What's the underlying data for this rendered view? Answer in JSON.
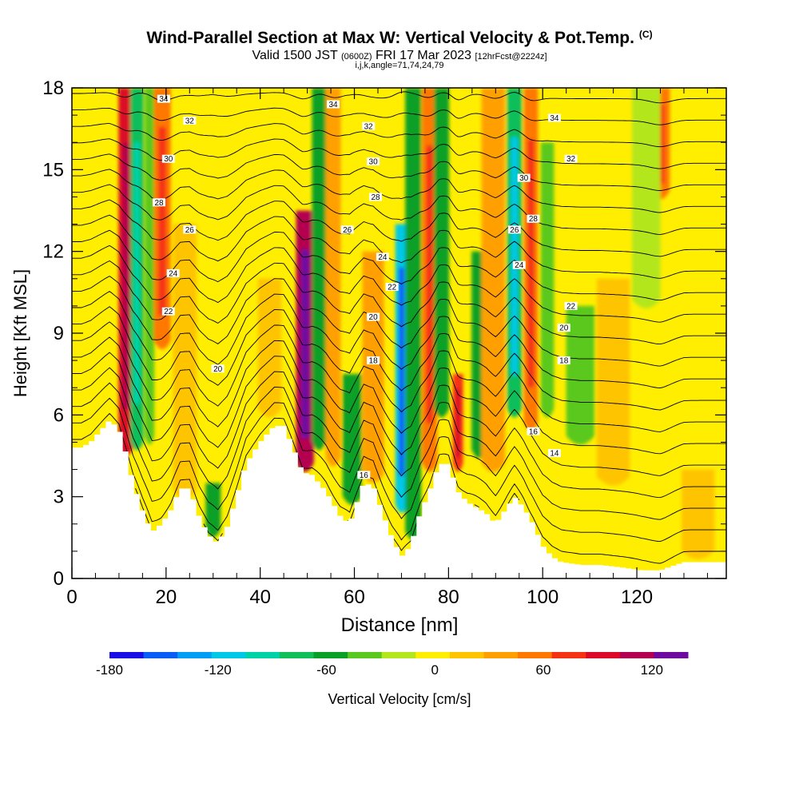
{
  "title": {
    "main": "Wind-Parallel Section at Max W: Vertical Velocity & Pot.Temp.",
    "copyright": "(C)",
    "valid": "Valid 1500 JST",
    "utc": "(0600Z)",
    "date": "FRI 17 Mar 2023",
    "fcst": "[12hrFcst@2224z]",
    "indices": "i,j,k,angle=71,74,24,79"
  },
  "chart_data": {
    "type": "heatmap",
    "xlabel": "Distance [nm]",
    "ylabel": "Height [Kft MSL]",
    "xlim": [
      0,
      139
    ],
    "ylim": [
      0,
      18
    ],
    "x_ticks": [
      0,
      20,
      40,
      60,
      80,
      100,
      120
    ],
    "y_ticks": [
      0,
      3,
      6,
      9,
      12,
      15,
      18
    ],
    "colorbar": {
      "label": "Vertical Velocity [cm/s]",
      "min": -180,
      "max": 140,
      "step": 20,
      "tick_values": [
        -180,
        -120,
        -60,
        0,
        60,
        120
      ],
      "colors": [
        "#1a0ee6",
        "#0a5ef5",
        "#009ef5",
        "#00c8e6",
        "#00d2a8",
        "#10be5a",
        "#0aa028",
        "#5ac81e",
        "#b4e61e",
        "#ffee00",
        "#ffc400",
        "#ffa000",
        "#ff7800",
        "#f53214",
        "#dc0a28",
        "#b40050",
        "#6e0aa0"
      ]
    },
    "background_velocity": 10,
    "bands": [
      {
        "x": 11.5,
        "width": 1.6,
        "w": 110,
        "top": 18,
        "bottom": 4.6
      },
      {
        "x": 13.8,
        "width": 1.4,
        "w": -70,
        "top": 18,
        "bottom": 4.8
      },
      {
        "x": 16.5,
        "width": 1.0,
        "w": -40,
        "top": 18,
        "bottom": 5.0
      },
      {
        "x": 19.2,
        "width": 1.8,
        "w": 65,
        "top": 18,
        "bottom": 8.5
      },
      {
        "x": 24.0,
        "width": 2.5,
        "w": 25,
        "top": 13.0,
        "bottom": 3.0
      },
      {
        "x": 30.0,
        "width": 1.6,
        "w": -45,
        "top": 3.5,
        "bottom": 1.6
      },
      {
        "x": 42.0,
        "width": 2.5,
        "w": 25,
        "top": 11.0,
        "bottom": 6.0
      },
      {
        "x": 49.5,
        "width": 1.9,
        "w": 125,
        "top": 13.5,
        "bottom": 4.0
      },
      {
        "x": 52.5,
        "width": 1.5,
        "w": -55,
        "top": 18,
        "bottom": 4.8
      },
      {
        "x": 55.5,
        "width": 1.6,
        "w": 45,
        "top": 18,
        "bottom": 4.2
      },
      {
        "x": 59.5,
        "width": 2.0,
        "w": -45,
        "top": 7.5,
        "bottom": 2.8
      },
      {
        "x": 64.0,
        "width": 2.3,
        "w": 40,
        "top": 12.0,
        "bottom": 3.6
      },
      {
        "x": 70.0,
        "width": 1.3,
        "w": -120,
        "top": 13.0,
        "bottom": 2.5
      },
      {
        "x": 72.5,
        "width": 1.7,
        "w": -55,
        "top": 18,
        "bottom": 1.5
      },
      {
        "x": 76.0,
        "width": 1.6,
        "w": 60,
        "top": 18,
        "bottom": 4.0
      },
      {
        "x": 78.5,
        "width": 1.6,
        "w": -45,
        "top": 18,
        "bottom": 6.0
      },
      {
        "x": 82.0,
        "width": 1.1,
        "w": 80,
        "top": 7.5,
        "bottom": 4.0
      },
      {
        "x": 86.5,
        "width": 1.6,
        "w": -50,
        "top": 12.0,
        "bottom": 4.5
      },
      {
        "x": 89.5,
        "width": 2.5,
        "w": 40,
        "top": 18,
        "bottom": 4.0
      },
      {
        "x": 94.0,
        "width": 1.6,
        "w": -75,
        "top": 18,
        "bottom": 6.0
      },
      {
        "x": 97.5,
        "width": 1.5,
        "w": 70,
        "top": 18,
        "bottom": 5.5
      },
      {
        "x": 101.0,
        "width": 1.4,
        "w": -35,
        "top": 16.0,
        "bottom": 6.0
      },
      {
        "x": 108.0,
        "width": 3.0,
        "w": -30,
        "top": 10.0,
        "bottom": 5.0
      },
      {
        "x": 115.0,
        "width": 3.5,
        "w": 30,
        "top": 11.0,
        "bottom": 3.5
      },
      {
        "x": 125.0,
        "width": 2.0,
        "w": 65,
        "top": 18,
        "bottom": 14.0
      },
      {
        "x": 122.0,
        "width": 3.0,
        "w": -20,
        "top": 18,
        "bottom": 10.0
      },
      {
        "x": 133.0,
        "width": 3.5,
        "w": 30,
        "top": 4.0,
        "bottom": 0.8
      }
    ],
    "terrain": [
      [
        0,
        4.8
      ],
      [
        2,
        4.8
      ],
      [
        4,
        5.0
      ],
      [
        8,
        5.8
      ],
      [
        10,
        5.5
      ],
      [
        11.5,
        4.6
      ],
      [
        13,
        3.5
      ],
      [
        15,
        2.5
      ],
      [
        17,
        1.7
      ],
      [
        19,
        2.0
      ],
      [
        21,
        2.5
      ],
      [
        23,
        3.3
      ],
      [
        25,
        3.3
      ],
      [
        27,
        2.3
      ],
      [
        29,
        1.6
      ],
      [
        31,
        1.3
      ],
      [
        33,
        1.9
      ],
      [
        35,
        3.0
      ],
      [
        37,
        4.2
      ],
      [
        40,
        5.0
      ],
      [
        43,
        5.6
      ],
      [
        45,
        5.6
      ],
      [
        47,
        4.8
      ],
      [
        49,
        3.9
      ],
      [
        51,
        3.8
      ],
      [
        54,
        3.2
      ],
      [
        57,
        2.3
      ],
      [
        59,
        2.0
      ],
      [
        61,
        3.0
      ],
      [
        62,
        3.5
      ],
      [
        64,
        3.4
      ],
      [
        66,
        2.4
      ],
      [
        68,
        1.5
      ],
      [
        70,
        0.8
      ],
      [
        72,
        1.2
      ],
      [
        74,
        2.4
      ],
      [
        76,
        3.2
      ],
      [
        78,
        4.2
      ],
      [
        80,
        4.2
      ],
      [
        82,
        3.2
      ],
      [
        84,
        2.8
      ],
      [
        86,
        2.6
      ],
      [
        88,
        2.4
      ],
      [
        90,
        2.0
      ],
      [
        92,
        2.5
      ],
      [
        94,
        3.0
      ],
      [
        96,
        2.6
      ],
      [
        98,
        2.0
      ],
      [
        100,
        1.2
      ],
      [
        102,
        0.8
      ],
      [
        104,
        0.6
      ],
      [
        108,
        0.5
      ],
      [
        112,
        0.5
      ],
      [
        117,
        0.4
      ],
      [
        121,
        0.3
      ],
      [
        125,
        0.3
      ],
      [
        130,
        0.6
      ],
      [
        135,
        0.6
      ],
      [
        139,
        0.6
      ]
    ],
    "theta_contours": {
      "min": 12,
      "max": 35,
      "step": 1,
      "surface_value": 12.5,
      "labeled_values": [
        34,
        32,
        30,
        28,
        26,
        24,
        22,
        20,
        18,
        16,
        14
      ]
    },
    "contour_labels": [
      {
        "text": "34",
        "x": 19.5,
        "y": 17.6
      },
      {
        "text": "32",
        "x": 25,
        "y": 16.8
      },
      {
        "text": "30",
        "x": 20.5,
        "y": 15.4
      },
      {
        "text": "28",
        "x": 18.5,
        "y": 13.8
      },
      {
        "text": "26",
        "x": 25,
        "y": 12.8
      },
      {
        "text": "24",
        "x": 21.5,
        "y": 11.2
      },
      {
        "text": "22",
        "x": 20.5,
        "y": 9.8
      },
      {
        "text": "20",
        "x": 31,
        "y": 7.7
      },
      {
        "text": "34",
        "x": 55.5,
        "y": 17.4
      },
      {
        "text": "32",
        "x": 63,
        "y": 16.6
      },
      {
        "text": "30",
        "x": 64,
        "y": 15.3
      },
      {
        "text": "28",
        "x": 64.5,
        "y": 14.0
      },
      {
        "text": "26",
        "x": 58.5,
        "y": 12.8
      },
      {
        "text": "24",
        "x": 66,
        "y": 11.8
      },
      {
        "text": "22",
        "x": 68,
        "y": 10.7
      },
      {
        "text": "20",
        "x": 64,
        "y": 9.6
      },
      {
        "text": "18",
        "x": 64,
        "y": 8.0
      },
      {
        "text": "16",
        "x": 62,
        "y": 3.8
      },
      {
        "text": "34",
        "x": 102.5,
        "y": 16.9
      },
      {
        "text": "32",
        "x": 106,
        "y": 15.4
      },
      {
        "text": "30",
        "x": 96,
        "y": 14.7
      },
      {
        "text": "28",
        "x": 98,
        "y": 13.2
      },
      {
        "text": "26",
        "x": 94,
        "y": 12.8
      },
      {
        "text": "24",
        "x": 95,
        "y": 11.5
      },
      {
        "text": "22",
        "x": 106,
        "y": 10.0
      },
      {
        "text": "20",
        "x": 104.5,
        "y": 9.2
      },
      {
        "text": "18",
        "x": 104.5,
        "y": 8.0
      },
      {
        "text": "16",
        "x": 98,
        "y": 5.4
      },
      {
        "text": "14",
        "x": 102.5,
        "y": 4.6
      }
    ]
  }
}
